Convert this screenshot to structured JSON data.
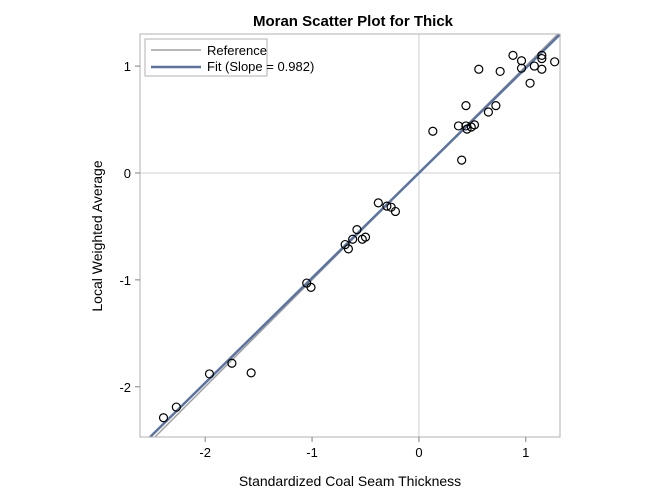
{
  "chart_data": {
    "type": "scatter",
    "title": "Moran Scatter Plot for Thick",
    "xlabel": "Standardized Coal Seam Thickness",
    "ylabel": "Local Weighted Average",
    "xlim": [
      -2.61,
      1.32
    ],
    "ylim": [
      -2.47,
      1.3
    ],
    "xticks": [
      -2,
      -1,
      0,
      1
    ],
    "yticks": [
      -2,
      -1,
      0,
      1
    ],
    "xtick_labels": [
      "-2",
      "-1",
      "0",
      "1"
    ],
    "ytick_labels": [
      "-2",
      "-1",
      "0",
      "1"
    ],
    "grid": false,
    "reference_axes_at_zero": true,
    "legend_position": "top-left",
    "legend": [
      {
        "label": "Reference",
        "color": "#a0a0a0"
      },
      {
        "label": "Fit (Slope = 0.982)",
        "color": "#5a73a0"
      }
    ],
    "reference_line": {
      "slope": 1,
      "intercept": 0
    },
    "fit_line": {
      "slope": 0.982,
      "intercept": 0
    },
    "colors": {
      "marker": "#000000",
      "fit": "#5a73a0",
      "reference": "#a0a0a0",
      "zero_lines": "#d0d0d0"
    },
    "points": [
      [
        -2.39,
        -2.29
      ],
      [
        -2.27,
        -2.19
      ],
      [
        -1.96,
        -1.88
      ],
      [
        -1.75,
        -1.78
      ],
      [
        -1.57,
        -1.87
      ],
      [
        -1.05,
        -1.03
      ],
      [
        -1.01,
        -1.07
      ],
      [
        -0.69,
        -0.67
      ],
      [
        -0.66,
        -0.71
      ],
      [
        -0.62,
        -0.62
      ],
      [
        -0.58,
        -0.53
      ],
      [
        -0.53,
        -0.62
      ],
      [
        -0.5,
        -0.6
      ],
      [
        -0.38,
        -0.28
      ],
      [
        -0.3,
        -0.31
      ],
      [
        -0.26,
        -0.32
      ],
      [
        -0.22,
        -0.36
      ],
      [
        0.13,
        0.39
      ],
      [
        0.37,
        0.44
      ],
      [
        0.4,
        0.12
      ],
      [
        0.44,
        0.63
      ],
      [
        0.44,
        0.44
      ],
      [
        0.45,
        0.41
      ],
      [
        0.49,
        0.43
      ],
      [
        0.52,
        0.45
      ],
      [
        0.56,
        0.97
      ],
      [
        0.65,
        0.57
      ],
      [
        0.72,
        0.63
      ],
      [
        0.76,
        0.95
      ],
      [
        0.88,
        1.1
      ],
      [
        0.96,
        1.05
      ],
      [
        0.96,
        0.98
      ],
      [
        1.04,
        0.84
      ],
      [
        1.08,
        1.0
      ],
      [
        1.15,
        1.1
      ],
      [
        1.15,
        1.07
      ],
      [
        1.15,
        0.97
      ],
      [
        1.27,
        1.04
      ]
    ]
  }
}
